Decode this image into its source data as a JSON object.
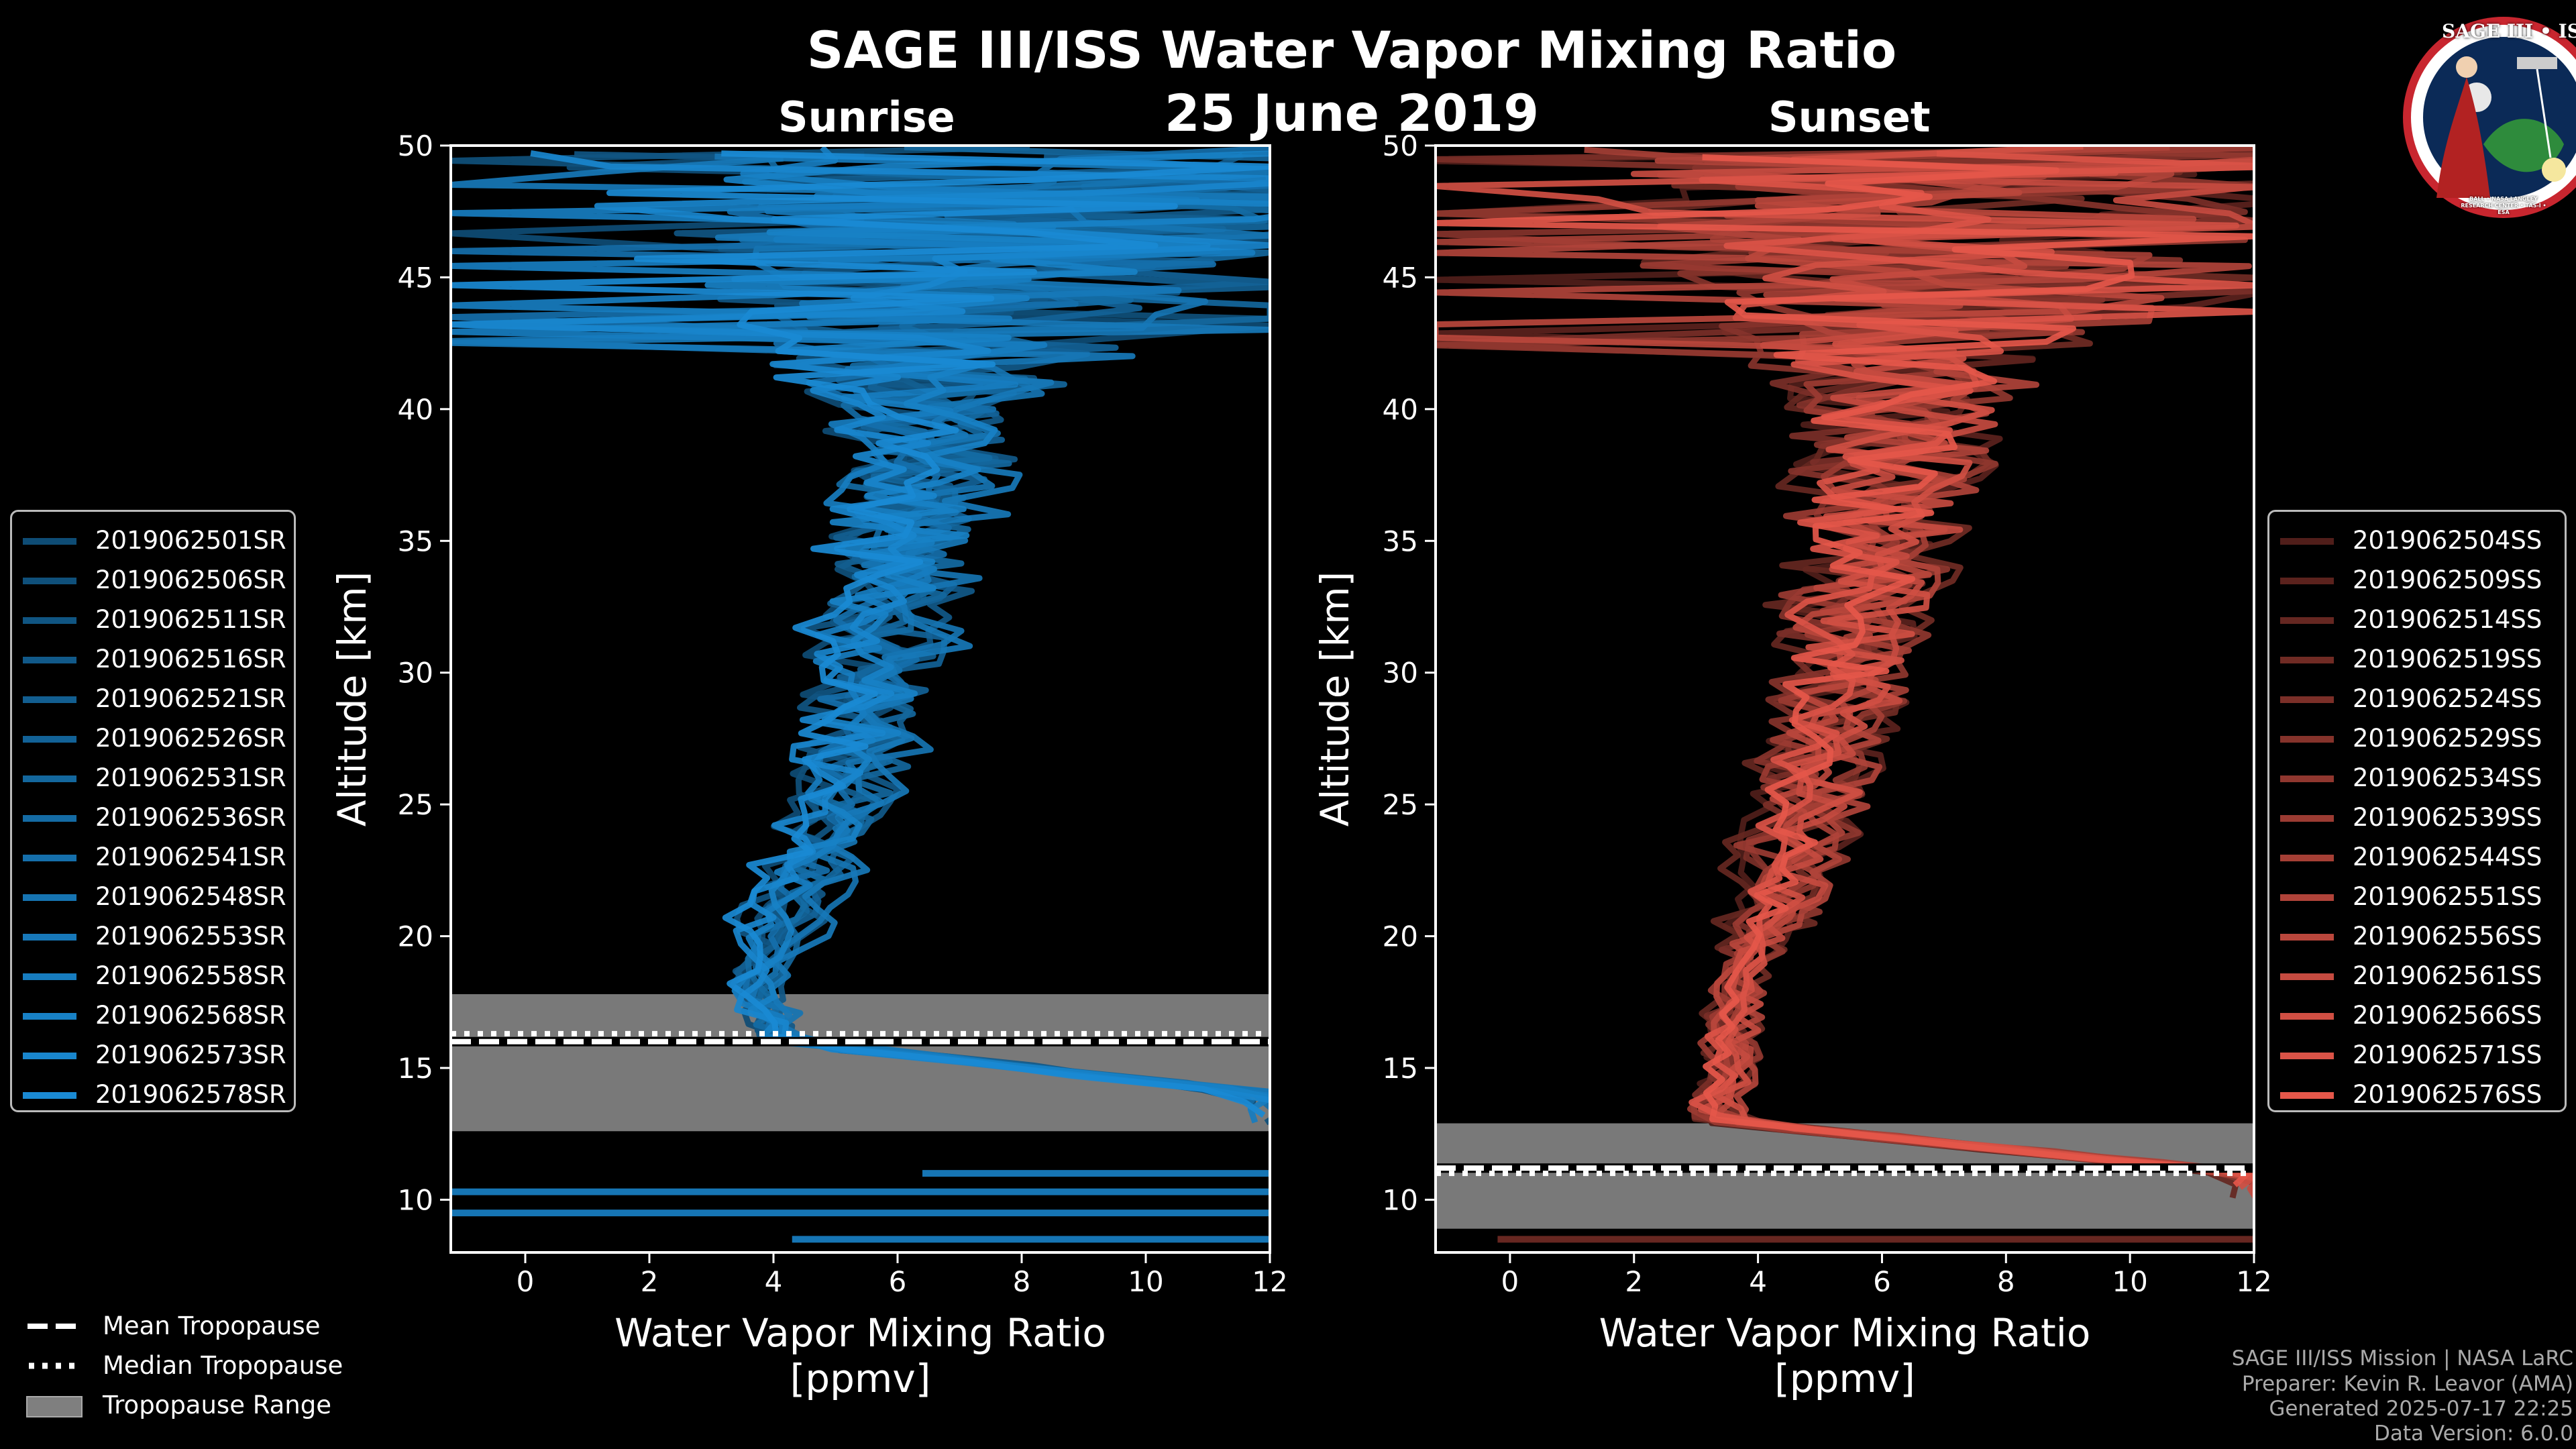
{
  "title": "SAGE III/ISS Water Vapor Mixing Ratio",
  "date": "25 June 2019",
  "logo": {
    "text_top": "SAGE III • ISS",
    "text_bottom": "BALL • NASA LANGLEY RESEARCH CENTER • TAS-I • ESA"
  },
  "tropopause_legend": {
    "mean": "Mean Tropopause",
    "median": "Median Tropopause",
    "range": "Tropopause Range"
  },
  "credits": {
    "mission": "SAGE III/ISS Mission | NASA LaRC",
    "preparer": "Preparer: Kevin R. Leavor (AMA)",
    "generated": "Generated 2025-07-17 22:25",
    "version": "Data Version: 6.0.0"
  },
  "colors": {
    "sunrise": "#1a8ad4",
    "sunset": "#e5574a",
    "tropo_fill": "#7f7f7f"
  },
  "chart_data": [
    {
      "type": "line",
      "title": "Sunrise",
      "xlabel": "Water Vapor Mixing Ratio\n[ppmv]",
      "ylabel": "Altitude [km]",
      "xlim": [
        -1.2,
        12
      ],
      "ylim": [
        8,
        50
      ],
      "xticks": [
        0,
        2,
        4,
        6,
        8,
        10,
        12
      ],
      "yticks": [
        10,
        15,
        20,
        25,
        30,
        35,
        40,
        45,
        50
      ],
      "series_names": [
        "2019062501SR",
        "2019062506SR",
        "2019062511SR",
        "2019062516SR",
        "2019062521SR",
        "2019062526SR",
        "2019062531SR",
        "2019062536SR",
        "2019062541SR",
        "2019062548SR",
        "2019062553SR",
        "2019062558SR",
        "2019062568SR",
        "2019062573SR",
        "2019062578SR"
      ],
      "typical_profile": {
        "altitude_km": [
          14,
          16,
          18,
          22,
          26,
          30,
          35,
          40,
          45,
          50
        ],
        "ppmv": [
          12,
          4.2,
          3.6,
          4.4,
          5.2,
          5.6,
          6.0,
          6.4,
          7.0,
          7.5
        ]
      },
      "tropopause": {
        "mean_km": 16.0,
        "median_km": 16.3,
        "range_km": [
          12.6,
          17.8
        ]
      },
      "low_altitude_segments": [
        {
          "altitude_km": 11.0,
          "from_ppmv": 6.4,
          "to_ppmv": 12
        },
        {
          "altitude_km": 10.3,
          "from_ppmv": -1.2,
          "to_ppmv": 12
        },
        {
          "altitude_km": 9.5,
          "from_ppmv": -1.2,
          "to_ppmv": 12
        },
        {
          "altitude_km": 8.5,
          "from_ppmv": 4.3,
          "to_ppmv": 12
        }
      ]
    },
    {
      "type": "line",
      "title": "Sunset",
      "xlabel": "Water Vapor Mixing Ratio\n[ppmv]",
      "ylabel": "Altitude [km]",
      "xlim": [
        -1.2,
        12
      ],
      "ylim": [
        8,
        50
      ],
      "xticks": [
        0,
        2,
        4,
        6,
        8,
        10,
        12
      ],
      "yticks": [
        10,
        15,
        20,
        25,
        30,
        35,
        40,
        45,
        50
      ],
      "series_names": [
        "2019062504SS",
        "2019062509SS",
        "2019062514SS",
        "2019062519SS",
        "2019062524SS",
        "2019062529SS",
        "2019062534SS",
        "2019062539SS",
        "2019062544SS",
        "2019062551SS",
        "2019062556SS",
        "2019062561SS",
        "2019062566SS",
        "2019062571SS",
        "2019062576SS"
      ],
      "typical_profile": {
        "altitude_km": [
          11,
          13,
          15,
          18,
          22,
          26,
          30,
          35,
          40,
          45,
          50
        ],
        "ppmv": [
          12,
          3.2,
          3.5,
          3.6,
          4.3,
          4.8,
          5.3,
          5.8,
          6.2,
          6.8,
          7.5
        ]
      },
      "tropopause": {
        "mean_km": 11.2,
        "median_km": 11.0,
        "range_km": [
          8.9,
          12.9
        ]
      },
      "low_altitude_segments": [
        {
          "altitude_km": 8.5,
          "from_ppmv": -0.2,
          "to_ppmv": 12
        }
      ]
    }
  ]
}
